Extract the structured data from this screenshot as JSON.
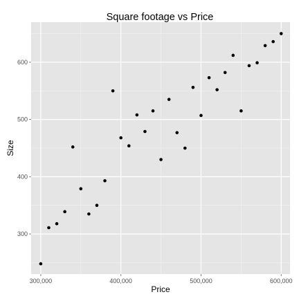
{
  "chart_data": {
    "type": "scatter",
    "title": "Square footage vs Price",
    "xlabel": "Price",
    "ylabel": "Size",
    "xlim": [
      288000,
      611000
    ],
    "ylim": [
      230,
      670
    ],
    "xticks": [
      300000,
      400000,
      500000,
      600000
    ],
    "xtick_labels": [
      "300,000",
      "400,000",
      "500,000",
      "600,000"
    ],
    "yticks": [
      300,
      400,
      500,
      600
    ],
    "ytick_labels": [
      "300",
      "400",
      "500",
      "600"
    ],
    "grid": true,
    "legend": "none",
    "panel_background": "#e5e5e5",
    "grid_color": "#ffffff",
    "point_color": "#000000",
    "points": [
      {
        "x": 300000,
        "y": 248
      },
      {
        "x": 310000,
        "y": 311
      },
      {
        "x": 320000,
        "y": 318
      },
      {
        "x": 330000,
        "y": 339
      },
      {
        "x": 340000,
        "y": 452
      },
      {
        "x": 350000,
        "y": 379
      },
      {
        "x": 360000,
        "y": 335
      },
      {
        "x": 370000,
        "y": 350
      },
      {
        "x": 380000,
        "y": 393
      },
      {
        "x": 390000,
        "y": 550
      },
      {
        "x": 400000,
        "y": 468
      },
      {
        "x": 410000,
        "y": 454
      },
      {
        "x": 420000,
        "y": 508
      },
      {
        "x": 430000,
        "y": 479
      },
      {
        "x": 440000,
        "y": 515
      },
      {
        "x": 450000,
        "y": 430
      },
      {
        "x": 460000,
        "y": 535
      },
      {
        "x": 470000,
        "y": 477
      },
      {
        "x": 480000,
        "y": 450
      },
      {
        "x": 490000,
        "y": 556
      },
      {
        "x": 500000,
        "y": 507
      },
      {
        "x": 510000,
        "y": 573
      },
      {
        "x": 520000,
        "y": 552
      },
      {
        "x": 530000,
        "y": 582
      },
      {
        "x": 540000,
        "y": 612
      },
      {
        "x": 550000,
        "y": 515
      },
      {
        "x": 560000,
        "y": 594
      },
      {
        "x": 570000,
        "y": 599
      },
      {
        "x": 580000,
        "y": 629
      },
      {
        "x": 590000,
        "y": 636
      },
      {
        "x": 600000,
        "y": 650
      }
    ]
  }
}
